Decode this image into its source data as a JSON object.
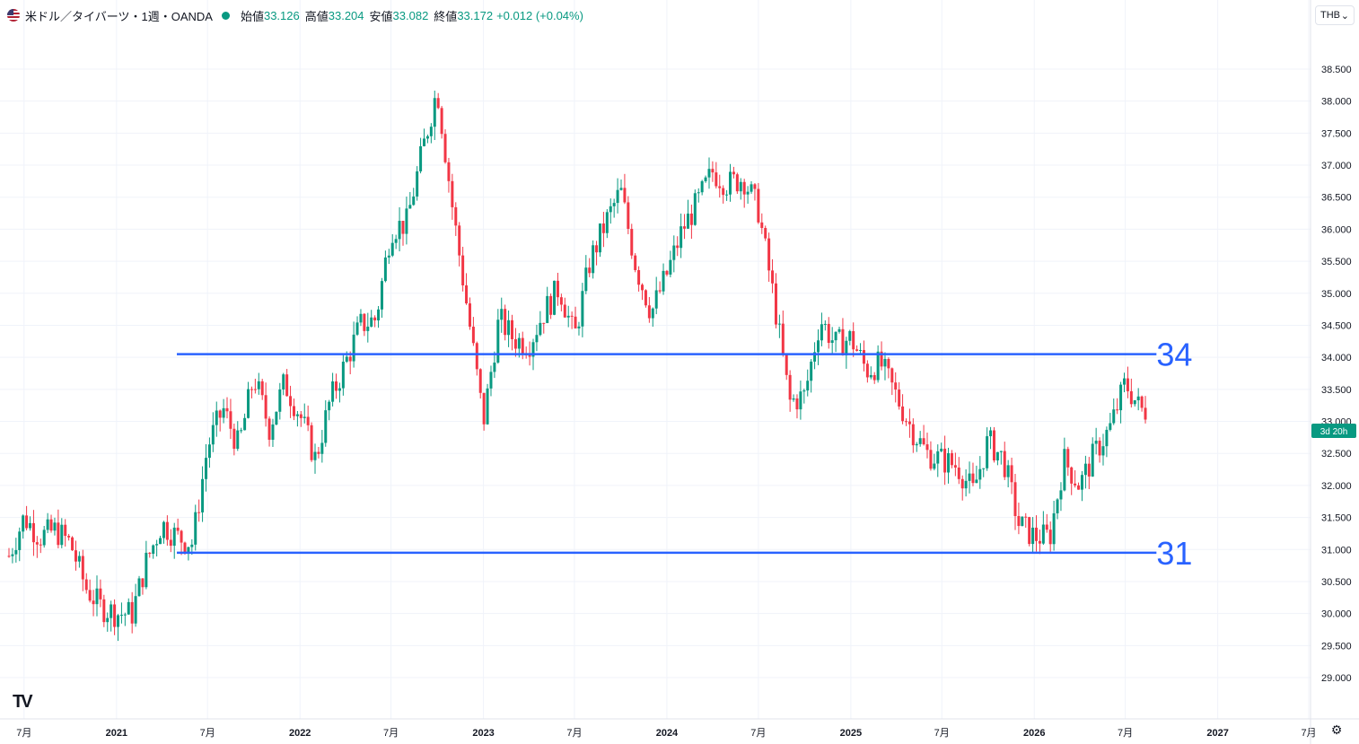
{
  "header": {
    "symbol": "米ドル／タイバーツ・1週・OANDA",
    "open_label": "始値",
    "open": "33.126",
    "high_label": "高値",
    "high": "33.204",
    "low_label": "安値",
    "low": "33.082",
    "close_label": "終値",
    "close": "33.172",
    "change": "+0.012 (+0.04%)"
  },
  "currency_button": {
    "label": "THB",
    "chevron": "⌄"
  },
  "logo_text": "TV",
  "settings_icon": "⚙",
  "countdown_label": "3d 20h",
  "colors": {
    "up": "#089981",
    "down": "#f23645",
    "line": "#2962ff",
    "annotation": "#2962ff",
    "grid": "#f0f3fa"
  },
  "chart_data": {
    "type": "candlestick",
    "interval": "1W",
    "x_axis_labels": [
      "7月",
      "2021",
      "7月",
      "2022",
      "7月",
      "2023",
      "7月",
      "2024",
      "7月",
      "2025",
      "7月",
      "2026",
      "7月",
      "2027",
      "7月"
    ],
    "y_ticks": [
      "29.000",
      "29.500",
      "30.000",
      "30.500",
      "31.000",
      "31.500",
      "32.000",
      "32.500",
      "33.000",
      "33.500",
      "34.000",
      "34.500",
      "35.000",
      "35.500",
      "36.000",
      "36.500",
      "37.000",
      "37.500",
      "38.000",
      "38.500"
    ],
    "ylim": [
      28.7,
      39.0
    ],
    "last_close": 33.172,
    "horizontal_lines": [
      {
        "value": 34.05,
        "label": "34",
        "from": "2021-05",
        "to": "2026-09"
      },
      {
        "value": 30.95,
        "label": "31",
        "from": "2021-05",
        "to": "2026-09"
      }
    ],
    "price_path": [
      {
        "date": "2020-06",
        "value": 30.9
      },
      {
        "date": "2020-07",
        "value": 31.5
      },
      {
        "date": "2020-08",
        "value": 31.2
      },
      {
        "date": "2020-09",
        "value": 31.3
      },
      {
        "date": "2020-10",
        "value": 31.1
      },
      {
        "date": "2020-11",
        "value": 30.4
      },
      {
        "date": "2020-12",
        "value": 30.1
      },
      {
        "date": "2021-01",
        "value": 30.0
      },
      {
        "date": "2021-02",
        "value": 30.0
      },
      {
        "date": "2021-03",
        "value": 30.8
      },
      {
        "date": "2021-04",
        "value": 31.4
      },
      {
        "date": "2021-05",
        "value": 31.2
      },
      {
        "date": "2021-06",
        "value": 31.1
      },
      {
        "date": "2021-07",
        "value": 32.6
      },
      {
        "date": "2021-08",
        "value": 33.2
      },
      {
        "date": "2021-09",
        "value": 32.6
      },
      {
        "date": "2021-10",
        "value": 33.7
      },
      {
        "date": "2021-11",
        "value": 32.9
      },
      {
        "date": "2021-12",
        "value": 33.6
      },
      {
        "date": "2022-01",
        "value": 33.1
      },
      {
        "date": "2022-02",
        "value": 32.4
      },
      {
        "date": "2022-03",
        "value": 33.3
      },
      {
        "date": "2022-04",
        "value": 33.9
      },
      {
        "date": "2022-05",
        "value": 34.5
      },
      {
        "date": "2022-06",
        "value": 34.6
      },
      {
        "date": "2022-07",
        "value": 36.0
      },
      {
        "date": "2022-08",
        "value": 36.1
      },
      {
        "date": "2022-09",
        "value": 37.2
      },
      {
        "date": "2022-10",
        "value": 38.2
      },
      {
        "date": "2022-11",
        "value": 36.3
      },
      {
        "date": "2022-12",
        "value": 34.7
      },
      {
        "date": "2023-01",
        "value": 33.0
      },
      {
        "date": "2023-02",
        "value": 34.6
      },
      {
        "date": "2023-03",
        "value": 34.3
      },
      {
        "date": "2023-04",
        "value": 34.2
      },
      {
        "date": "2023-05",
        "value": 34.7
      },
      {
        "date": "2023-06",
        "value": 35.1
      },
      {
        "date": "2023-07",
        "value": 34.3
      },
      {
        "date": "2023-08",
        "value": 35.5
      },
      {
        "date": "2023-09",
        "value": 36.1
      },
      {
        "date": "2023-10",
        "value": 36.6
      },
      {
        "date": "2023-11",
        "value": 35.4
      },
      {
        "date": "2023-12",
        "value": 34.7
      },
      {
        "date": "2024-01",
        "value": 35.3
      },
      {
        "date": "2024-02",
        "value": 36.0
      },
      {
        "date": "2024-03",
        "value": 36.4
      },
      {
        "date": "2024-04",
        "value": 36.9
      },
      {
        "date": "2024-05",
        "value": 36.7
      },
      {
        "date": "2024-06",
        "value": 36.8
      },
      {
        "date": "2024-07",
        "value": 36.3
      },
      {
        "date": "2024-08",
        "value": 34.9
      },
      {
        "date": "2024-09",
        "value": 33.3
      },
      {
        "date": "2024-10",
        "value": 33.4
      },
      {
        "date": "2024-11",
        "value": 34.6
      },
      {
        "date": "2024-12",
        "value": 34.2
      },
      {
        "date": "2025-01",
        "value": 34.3
      },
      {
        "date": "2025-02",
        "value": 33.8
      },
      {
        "date": "2025-03",
        "value": 33.9
      },
      {
        "date": "2025-04",
        "value": 33.4
      },
      {
        "date": "2025-05",
        "value": 32.9
      },
      {
        "date": "2025-06",
        "value": 32.5
      },
      {
        "date": "2025-07",
        "value": 32.4
      },
      {
        "date": "2025-08",
        "value": 32.3
      },
      {
        "date": "2025-09",
        "value": 31.9
      },
      {
        "date": "2025-10",
        "value": 32.7
      },
      {
        "date": "2025-11",
        "value": 32.4
      },
      {
        "date": "2025-12",
        "value": 31.4
      },
      {
        "date": "2026-01",
        "value": 31.2
      },
      {
        "date": "2026-02",
        "value": 31.2
      },
      {
        "date": "2026-03",
        "value": 32.4
      },
      {
        "date": "2026-04",
        "value": 32.0
      },
      {
        "date": "2026-05",
        "value": 32.5
      },
      {
        "date": "2026-06",
        "value": 32.9
      },
      {
        "date": "2026-07",
        "value": 33.6
      },
      {
        "date": "2026-08",
        "value": 33.172
      }
    ]
  }
}
